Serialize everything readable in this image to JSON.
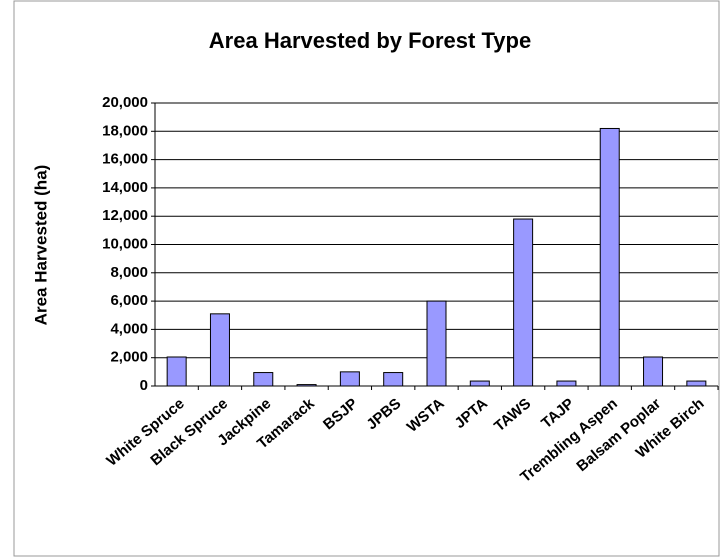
{
  "chart_data": {
    "type": "bar",
    "title": "Area Harvested by Forest Type",
    "y_label": "Area Harvested (ha)",
    "categories": [
      "White Spruce",
      "Black Spruce",
      "Jackpine",
      "Tamarack",
      "BSJP",
      "JPBS",
      "WSTA",
      "JPTA",
      "TAWS",
      "TAJP",
      "Trembling Aspen",
      "Balsam Poplar",
      "White Birch"
    ],
    "values": [
      2050,
      5100,
      950,
      100,
      1000,
      950,
      6000,
      350,
      11800,
      350,
      18200,
      2050,
      350
    ],
    "color": "#9999ff",
    "ylim": [
      0,
      20000
    ],
    "yticks": [
      0,
      {
        "value": 2000,
        "label": "2,000"
      },
      {
        "value": 4000,
        "label": "4,000"
      },
      {
        "value": 6000,
        "label": "6,000"
      },
      {
        "value": 8000,
        "label": "8,000"
      },
      {
        "value": 10000,
        "label": "10,000"
      },
      {
        "value": 12000,
        "label": "12,000"
      },
      {
        "value": 14000,
        "label": "14,000"
      },
      {
        "value": 16000,
        "label": "16,000"
      },
      {
        "value": 18000,
        "label": "18,000"
      },
      {
        "value": 20000,
        "label": "20,000"
      }
    ],
    "grid": true
  }
}
